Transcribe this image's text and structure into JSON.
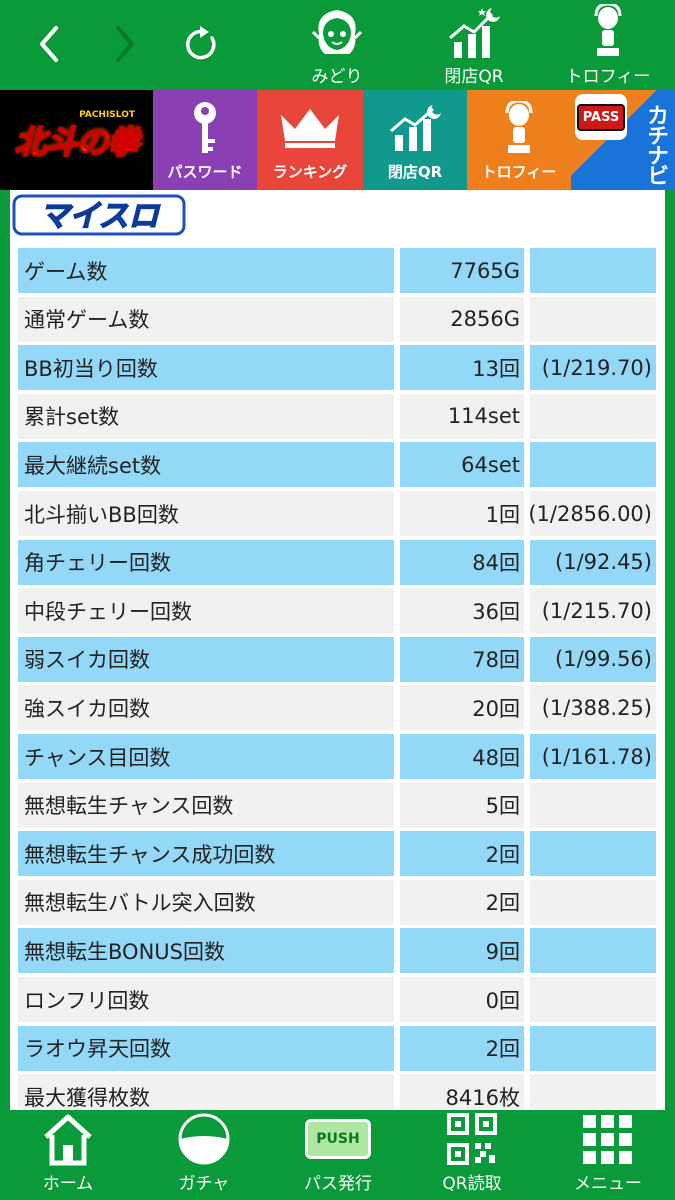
{
  "topnav": {
    "midori": "みどり",
    "closing_qr": "閉店QR",
    "trophy": "トロフィー"
  },
  "menu": {
    "logo_text": "北斗の拳",
    "logo_sub": "PACHISLOT",
    "password": "パスワード",
    "ranking": "ランキング",
    "closing_qr": "閉店QR",
    "trophy": "トロフィー",
    "pass_badge": "PASS",
    "kachinavi": "カチナビ"
  },
  "myslo_logo": "マイスロ",
  "stats": [
    {
      "label": "ゲーム数",
      "value": "7765G",
      "prob": ""
    },
    {
      "label": "通常ゲーム数",
      "value": "2856G",
      "prob": ""
    },
    {
      "label": "BB初当り回数",
      "value": "13回",
      "prob": "(1/219.70)"
    },
    {
      "label": "累計set数",
      "value": "114set",
      "prob": ""
    },
    {
      "label": "最大継続set数",
      "value": "64set",
      "prob": ""
    },
    {
      "label": "北斗揃いBB回数",
      "value": "1回",
      "prob": "(1/2856.00)"
    },
    {
      "label": "角チェリー回数",
      "value": "84回",
      "prob": "(1/92.45)"
    },
    {
      "label": "中段チェリー回数",
      "value": "36回",
      "prob": "(1/215.70)"
    },
    {
      "label": "弱スイカ回数",
      "value": "78回",
      "prob": "(1/99.56)"
    },
    {
      "label": "強スイカ回数",
      "value": "20回",
      "prob": "(1/388.25)"
    },
    {
      "label": "チャンス目回数",
      "value": "48回",
      "prob": "(1/161.78)"
    },
    {
      "label": "無想転生チャンス回数",
      "value": "5回",
      "prob": ""
    },
    {
      "label": "無想転生チャンス成功回数",
      "value": "2回",
      "prob": ""
    },
    {
      "label": "無想転生バトル突入回数",
      "value": "2回",
      "prob": ""
    },
    {
      "label": "無想転生BONUS回数",
      "value": "9回",
      "prob": ""
    },
    {
      "label": "ロンフリ回数",
      "value": "0回",
      "prob": ""
    },
    {
      "label": "ラオウ昇天回数",
      "value": "2回",
      "prob": ""
    },
    {
      "label": "最大獲得枚数",
      "value": "8416枚",
      "prob": ""
    }
  ],
  "bottomnav": {
    "home": "ホーム",
    "gacha": "ガチャ",
    "push_badge": "PUSH",
    "pass_issue": "パス発行",
    "qr_read": "QR読取",
    "menu": "メニュー"
  },
  "colors": {
    "nav_green": "#0a9a3a",
    "row_blue": "#94d8f8",
    "row_grey": "#f1f1f1",
    "password_purple": "#8a3fb3",
    "ranking_red": "#e8463a",
    "qr_teal": "#12998e",
    "trophy_orange": "#ee7f1c",
    "kachinavi_blue": "#1a73d9"
  }
}
